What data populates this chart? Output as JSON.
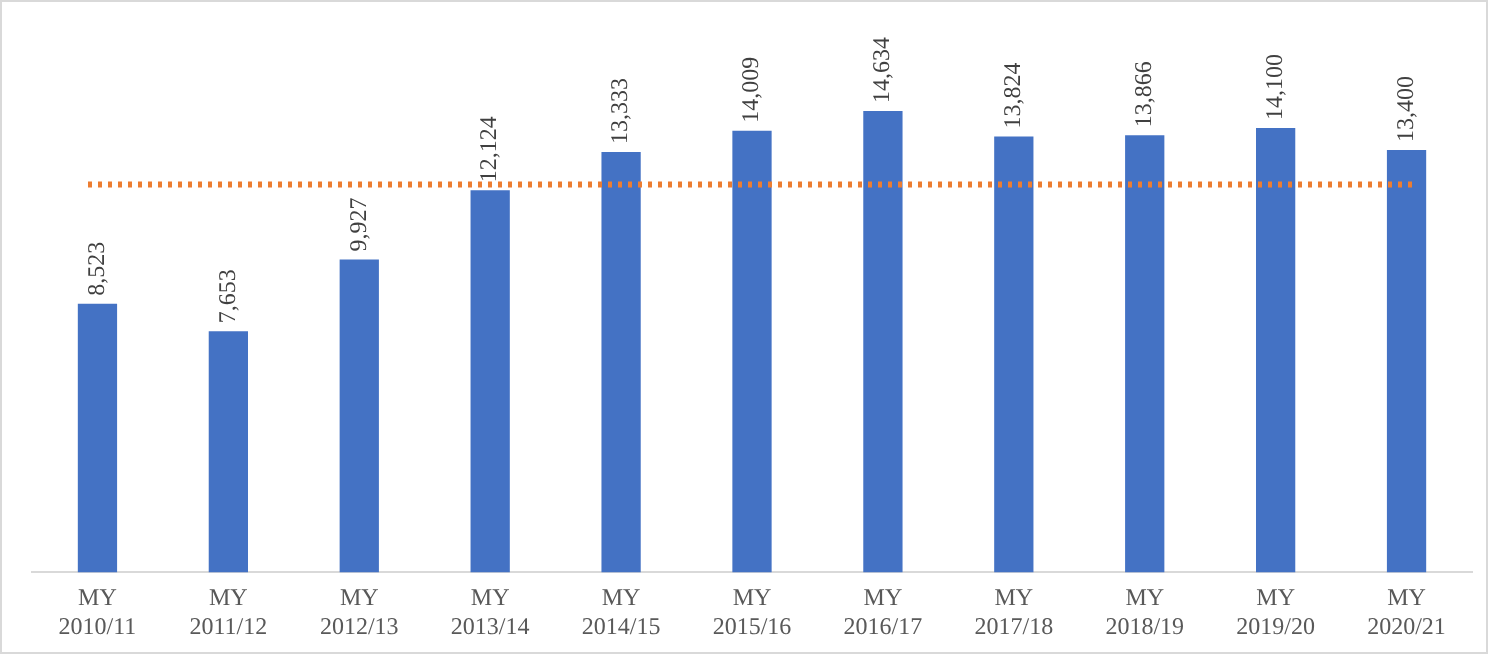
{
  "chart_data": {
    "type": "bar",
    "categories": [
      "MY 2010/11",
      "MY 2011/12",
      "MY 2012/13",
      "MY 2013/14",
      "MY 2014/15",
      "MY 2015/16",
      "MY 2016/17",
      "MY 2017/18",
      "MY 2018/19",
      "MY 2019/20",
      "MY 2020/21"
    ],
    "values": [
      8523,
      7653,
      9927,
      12124,
      13333,
      14009,
      14634,
      13824,
      13866,
      14100,
      13400
    ],
    "value_labels": [
      "8,523",
      "7,653",
      "9,927",
      "12,124",
      "13,333",
      "14,009",
      "14,634",
      "13,824",
      "13,866",
      "14,100",
      "13,400"
    ],
    "color": "#4472c4",
    "ref_lines": [
      {
        "axis": "y",
        "value": 12308,
        "color": "#ed7d31",
        "line_style": "dotted"
      }
    ],
    "grid": false,
    "legend": false
  }
}
